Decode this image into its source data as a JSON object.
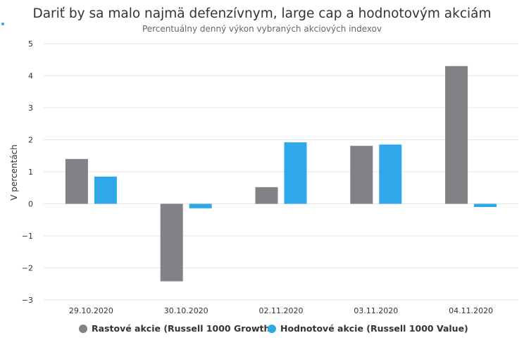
{
  "chart_data": {
    "type": "bar",
    "title": "Dariť by sa malo najmä defenzívnym, large cap a hodnotovým akciám",
    "subtitle": "Percentuálny denný výkon vybraných akciových indexov",
    "xlabel": "",
    "ylabel": "V percentách",
    "ylim": [
      -3,
      5
    ],
    "yticks": [
      "5",
      "4",
      "3",
      "2",
      "1",
      "0",
      "−1",
      "−2",
      "−3"
    ],
    "ytick_values": [
      5,
      4,
      3,
      2,
      1,
      0,
      -1,
      -2,
      -3
    ],
    "categories": [
      "29.10.2020",
      "30.10.2020",
      "02.11.2020",
      "03.11.2020",
      "04.11.2020"
    ],
    "series": [
      {
        "name": "Rastové akcie (Russell 1000 Growth)",
        "color": "#808285",
        "values": [
          1.4,
          -2.42,
          0.52,
          1.81,
          4.3
        ]
      },
      {
        "name": "Hodnotové akcie (Russell 1000 Value)",
        "color": "#2ea8e8",
        "values": [
          0.85,
          -0.14,
          1.92,
          1.85,
          -0.1
        ]
      }
    ],
    "grid": true,
    "legend": "bottom-center"
  }
}
